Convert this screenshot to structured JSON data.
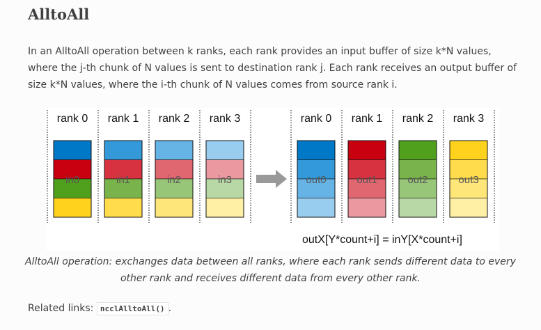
{
  "heading": "AlltoAll",
  "intro": "In an AlltoAll operation between k ranks, each rank provides an input buffer of size k*N values, where the j-th chunk of N values is sent to destination rank j. Each rank receives an output buffer of size k*N values, where the i-th chunk of N values comes from source rank i.",
  "figure": {
    "input_ranks": [
      "rank 0",
      "rank 1",
      "rank 2",
      "rank 3"
    ],
    "output_ranks": [
      "rank 0",
      "rank 1",
      "rank 2",
      "rank 3"
    ],
    "input_labels": [
      "in0",
      "in1",
      "in2",
      "in3"
    ],
    "output_labels": [
      "out0",
      "out1",
      "out2",
      "out3"
    ],
    "formula": "outX[Y*count+i] = inY[X*count+i]",
    "colors": {
      "rank_base": [
        "#0078c8",
        "#c8000f",
        "#50a01e",
        "#ffd21e"
      ],
      "input_shades": [
        [
          "#0078c8",
          "#c8000f",
          "#50a01e",
          "#ffd21e"
        ],
        [
          "#3399d9",
          "#d63240",
          "#78b44b",
          "#ffdc4b"
        ],
        [
          "#66b3e6",
          "#e06670",
          "#98c678",
          "#ffe678"
        ],
        [
          "#99cdf0",
          "#ea99a0",
          "#b8d8a5",
          "#fff0a5"
        ]
      ],
      "output_shades": [
        [
          "#0078c8",
          "#3399d9",
          "#66b3e6",
          "#99cdf0"
        ],
        [
          "#c8000f",
          "#d63240",
          "#e06670",
          "#ea99a0"
        ],
        [
          "#50a01e",
          "#78b44b",
          "#98c678",
          "#b8d8a5"
        ],
        [
          "#ffd21e",
          "#ffdc4b",
          "#ffe678",
          "#fff0a5"
        ]
      ],
      "arrow": "#999999"
    }
  },
  "caption": "AlltoAll operation: exchanges data between all ranks, where each rank sends different data to every other rank and receives different data from every other rank.",
  "related": {
    "label": "Related links:",
    "link": "ncclAlltoAll()",
    "suffix": "."
  }
}
